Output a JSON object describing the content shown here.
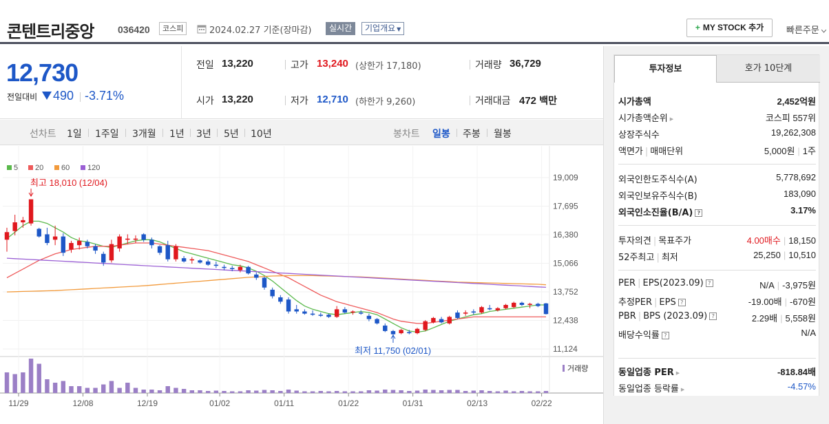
{
  "header": {
    "company_name": "콘텐트리중앙",
    "stock_code": "036420",
    "market": "코스피",
    "date": "2024.02.27 기준(장마감)",
    "realtime_label": "실시간",
    "overview_label": "기업개요",
    "mystock_label": "MY STOCK 추가",
    "quick_order_label": "빠른주문"
  },
  "price": {
    "current": "12,730",
    "change_label": "전일대비",
    "change_amount": "490",
    "change_rate": "-3.71%",
    "direction": "down"
  },
  "stats": {
    "prev_close_label": "전일",
    "prev_close": "13,220",
    "open_label": "시가",
    "open": "13,220",
    "high_label": "고가",
    "high": "13,240",
    "upper_limit": "(상한가 17,180)",
    "low_label": "저가",
    "low": "12,710",
    "lower_limit": "(하한가 9,260)",
    "volume_label": "거래량",
    "volume": "36,729",
    "amount_label": "거래대금",
    "amount": "472",
    "amount_unit": "백만"
  },
  "chart_tabs": {
    "line_label": "선차트",
    "line_periods": [
      "1일",
      "1주일",
      "3개월",
      "1년",
      "3년",
      "5년",
      "10년"
    ],
    "candle_label": "봉차트",
    "candle_periods": [
      "일봉",
      "주봉",
      "월봉"
    ],
    "active_candle": "일봉"
  },
  "chart_data": {
    "type": "candlestick",
    "legend": [
      {
        "name": "5",
        "color": "#5ab94b"
      },
      {
        "name": "20",
        "color": "#ee5a5a"
      },
      {
        "name": "60",
        "color": "#f29a3b"
      },
      {
        "name": "120",
        "color": "#9a5fd4"
      }
    ],
    "y_ticks": [
      "19,009",
      "17,695",
      "16,380",
      "15,066",
      "13,752",
      "12,438",
      "11,124"
    ],
    "y_range": [
      11124,
      19009
    ],
    "x_ticks": [
      "11/29",
      "12/08",
      "12/19",
      "01/02",
      "01/11",
      "01/22",
      "01/31",
      "02/13",
      "02/22"
    ],
    "high_annotation": "최고 18,010 (12/04)",
    "low_annotation": "최저 11,750 (02/01)",
    "volume_label": "거래량",
    "candles": [
      {
        "o": 16150,
        "h": 16700,
        "l": 15600,
        "c": 16500
      },
      {
        "o": 16550,
        "h": 17300,
        "l": 16350,
        "c": 16950
      },
      {
        "o": 16950,
        "h": 17200,
        "l": 16700,
        "c": 17050
      },
      {
        "o": 16900,
        "h": 18010,
        "l": 16800,
        "c": 18010
      },
      {
        "o": 16650,
        "h": 16700,
        "l": 16250,
        "c": 16300
      },
      {
        "o": 16400,
        "h": 16700,
        "l": 15900,
        "c": 16000
      },
      {
        "o": 16150,
        "h": 16800,
        "l": 15900,
        "c": 16300
      },
      {
        "o": 16300,
        "h": 16450,
        "l": 15400,
        "c": 15550
      },
      {
        "o": 15700,
        "h": 16100,
        "l": 15550,
        "c": 16000
      },
      {
        "o": 15900,
        "h": 16250,
        "l": 15700,
        "c": 16100
      },
      {
        "o": 16050,
        "h": 16150,
        "l": 15750,
        "c": 15850
      },
      {
        "o": 15850,
        "h": 15950,
        "l": 15500,
        "c": 15650
      },
      {
        "o": 15500,
        "h": 15600,
        "l": 14950,
        "c": 15100
      },
      {
        "o": 15200,
        "h": 16150,
        "l": 15100,
        "c": 15950
      },
      {
        "o": 15750,
        "h": 16400,
        "l": 15600,
        "c": 16300
      },
      {
        "o": 16150,
        "h": 16400,
        "l": 15950,
        "c": 16200
      },
      {
        "o": 16150,
        "h": 16350,
        "l": 16000,
        "c": 16200
      },
      {
        "o": 16400,
        "h": 16450,
        "l": 16050,
        "c": 16150
      },
      {
        "o": 16150,
        "h": 16250,
        "l": 15750,
        "c": 15900
      },
      {
        "o": 15850,
        "h": 15900,
        "l": 15450,
        "c": 15550
      },
      {
        "o": 15900,
        "h": 16100,
        "l": 15150,
        "c": 15250
      },
      {
        "o": 15250,
        "h": 15950,
        "l": 15150,
        "c": 15850
      },
      {
        "o": 15300,
        "h": 15400,
        "l": 15100,
        "c": 15150
      },
      {
        "o": 15200,
        "h": 15350,
        "l": 15050,
        "c": 15250
      },
      {
        "o": 15200,
        "h": 15250,
        "l": 15050,
        "c": 15100
      },
      {
        "o": 15150,
        "h": 15250,
        "l": 14950,
        "c": 15000
      },
      {
        "o": 15000,
        "h": 15150,
        "l": 14850,
        "c": 14950
      },
      {
        "o": 14900,
        "h": 15000,
        "l": 14750,
        "c": 14850
      },
      {
        "o": 14850,
        "h": 14950,
        "l": 14700,
        "c": 14800
      },
      {
        "o": 14750,
        "h": 15000,
        "l": 14650,
        "c": 14900
      },
      {
        "o": 14900,
        "h": 14950,
        "l": 14550,
        "c": 14600
      },
      {
        "o": 14550,
        "h": 14650,
        "l": 14300,
        "c": 14400
      },
      {
        "o": 14400,
        "h": 14450,
        "l": 13850,
        "c": 13950
      },
      {
        "o": 13850,
        "h": 13950,
        "l": 13450,
        "c": 13550
      },
      {
        "o": 13500,
        "h": 13600,
        "l": 13200,
        "c": 13300
      },
      {
        "o": 13400,
        "h": 13500,
        "l": 12750,
        "c": 12850
      },
      {
        "o": 12950,
        "h": 13150,
        "l": 12750,
        "c": 12850
      },
      {
        "o": 12850,
        "h": 12950,
        "l": 12700,
        "c": 12750
      },
      {
        "o": 12750,
        "h": 12900,
        "l": 12650,
        "c": 12700
      },
      {
        "o": 12700,
        "h": 12800,
        "l": 12600,
        "c": 12650
      },
      {
        "o": 12700,
        "h": 12750,
        "l": 12550,
        "c": 12600
      },
      {
        "o": 12600,
        "h": 13100,
        "l": 12550,
        "c": 12950
      },
      {
        "o": 12950,
        "h": 13050,
        "l": 12750,
        "c": 12800
      },
      {
        "o": 12800,
        "h": 12900,
        "l": 12700,
        "c": 12850
      },
      {
        "o": 12800,
        "h": 12900,
        "l": 12700,
        "c": 12750
      },
      {
        "o": 12650,
        "h": 12750,
        "l": 12400,
        "c": 12500
      },
      {
        "o": 12500,
        "h": 12550,
        "l": 12250,
        "c": 12300
      },
      {
        "o": 12200,
        "h": 12300,
        "l": 11900,
        "c": 11950
      },
      {
        "o": 11950,
        "h": 12000,
        "l": 11750,
        "c": 11800
      },
      {
        "o": 11850,
        "h": 12050,
        "l": 11800,
        "c": 12000
      },
      {
        "o": 11900,
        "h": 12000,
        "l": 11800,
        "c": 11850
      },
      {
        "o": 11850,
        "h": 12100,
        "l": 11800,
        "c": 12050
      },
      {
        "o": 12000,
        "h": 12450,
        "l": 11950,
        "c": 12400
      },
      {
        "o": 12350,
        "h": 12600,
        "l": 12300,
        "c": 12550
      },
      {
        "o": 12500,
        "h": 12600,
        "l": 12300,
        "c": 12350
      },
      {
        "o": 12300,
        "h": 12650,
        "l": 12250,
        "c": 12600
      },
      {
        "o": 12800,
        "h": 12900,
        "l": 12500,
        "c": 12550
      },
      {
        "o": 12750,
        "h": 12900,
        "l": 12650,
        "c": 12800
      },
      {
        "o": 12850,
        "h": 12950,
        "l": 12700,
        "c": 12800
      },
      {
        "o": 12800,
        "h": 13100,
        "l": 12750,
        "c": 13050
      },
      {
        "o": 13000,
        "h": 13150,
        "l": 12900,
        "c": 12950
      },
      {
        "o": 12900,
        "h": 13050,
        "l": 12850,
        "c": 13000
      },
      {
        "o": 13000,
        "h": 13200,
        "l": 12950,
        "c": 13150
      },
      {
        "o": 13050,
        "h": 13300,
        "l": 13000,
        "c": 13250
      },
      {
        "o": 13250,
        "h": 13300,
        "l": 13100,
        "c": 13150
      },
      {
        "o": 13150,
        "h": 13250,
        "l": 13000,
        "c": 13200
      },
      {
        "o": 13200,
        "h": 13250,
        "l": 13050,
        "c": 13100
      },
      {
        "o": 13220,
        "h": 13240,
        "l": 12710,
        "c": 12730
      }
    ],
    "ma": {
      "5": [
        16200,
        16500,
        16800,
        17000,
        17000,
        16900,
        16700,
        16500,
        16250,
        16100,
        16050,
        15950,
        15850,
        15800,
        15900,
        16000,
        16100,
        16150,
        16150,
        16050,
        15900,
        15750,
        15600,
        15500,
        15400,
        15300,
        15200,
        15100,
        15000,
        14950,
        14850,
        14700,
        14500,
        14250,
        13950,
        13650,
        13350,
        13100,
        12950,
        12850,
        12750,
        12700,
        12750,
        12800,
        12850,
        12800,
        12700,
        12500,
        12300,
        12100,
        11950,
        11900,
        11950,
        12100,
        12250,
        12400,
        12500,
        12600,
        12700,
        12750,
        12850,
        12900,
        12950,
        13000,
        13050,
        13100,
        13150,
        13150
      ],
      "20": [
        14400,
        14600,
        14800,
        15000,
        15200,
        15350,
        15500,
        15600,
        15700,
        15750,
        15800,
        15850,
        15850,
        15850,
        15900,
        15950,
        16000,
        16000,
        16000,
        15950,
        15900,
        15850,
        15800,
        15750,
        15700,
        15650,
        15550,
        15450,
        15350,
        15250,
        15150,
        15000,
        14850,
        14700,
        14550,
        14400,
        14200,
        14000,
        13800,
        13600,
        13450,
        13300,
        13200,
        13100,
        13000,
        12900,
        12800,
        12650,
        12500,
        12400,
        12350,
        12300,
        12300,
        12350,
        12400,
        12450,
        12500,
        12550,
        12600,
        12600,
        12600,
        12600,
        12600,
        12600,
        12600,
        12600,
        12600,
        12600
      ],
      "60": [
        13750,
        13760,
        13770,
        13780,
        13790,
        13800,
        13810,
        13830,
        13850,
        13870,
        13890,
        13910,
        13930,
        13950,
        13970,
        13990,
        14010,
        14030,
        14060,
        14090,
        14120,
        14150,
        14180,
        14210,
        14240,
        14270,
        14300,
        14330,
        14360,
        14390,
        14420,
        14440,
        14460,
        14480,
        14490,
        14500,
        14500,
        14500,
        14500,
        14490,
        14480,
        14470,
        14460,
        14450,
        14440,
        14420,
        14400,
        14380,
        14360,
        14340,
        14320,
        14300,
        14280,
        14260,
        14240,
        14220,
        14200,
        14190,
        14180,
        14170,
        14160,
        14150,
        14140,
        14130,
        14120,
        14110,
        14100,
        14080
      ],
      "120": [
        15300,
        15280,
        15260,
        15240,
        15220,
        15200,
        15180,
        15160,
        15140,
        15120,
        15100,
        15080,
        15060,
        15040,
        15020,
        15000,
        14980,
        14960,
        14940,
        14920,
        14900,
        14880,
        14860,
        14840,
        14820,
        14800,
        14780,
        14760,
        14740,
        14720,
        14700,
        14680,
        14660,
        14640,
        14620,
        14600,
        14580,
        14560,
        14540,
        14520,
        14500,
        14480,
        14460,
        14440,
        14420,
        14400,
        14380,
        14360,
        14340,
        14320,
        14300,
        14280,
        14260,
        14240,
        14220,
        14200,
        14180,
        14160,
        14140,
        14120,
        14100,
        14080,
        14060,
        14040,
        14020,
        14000,
        13980,
        13960
      ]
    },
    "volumes": [
      60,
      55,
      60,
      100,
      85,
      40,
      30,
      35,
      20,
      20,
      15,
      15,
      25,
      35,
      15,
      30,
      15,
      10,
      10,
      8,
      20,
      15,
      12,
      8,
      8,
      6,
      7,
      6,
      5,
      5,
      8,
      7,
      9,
      8,
      6,
      10,
      7,
      5,
      5,
      6,
      5,
      6,
      5,
      5,
      5,
      8,
      7,
      10,
      9,
      8,
      6,
      7,
      10,
      9,
      8,
      9,
      9,
      6,
      7,
      8,
      6,
      5,
      7,
      5,
      6,
      5,
      5,
      6
    ]
  },
  "invest_panel": {
    "tab_active": "투자정보",
    "tab_other": "호가 10단계",
    "rows": [
      {
        "label": "시가총액",
        "value": "2,452억원"
      },
      {
        "label": "시가총액순위",
        "value": "코스피 557위"
      },
      {
        "label": "상장주식수",
        "value": "19,262,308"
      },
      {
        "label": "액면가",
        "label2": "매매단위",
        "value": "5,000원",
        "value2": "1주"
      },
      {
        "label": "외국인한도주식수(A)",
        "value": "5,778,692"
      },
      {
        "label": "외국인보유주식수(B)",
        "value": "183,090"
      },
      {
        "label": "외국인소진율(B/A)",
        "value": "3.17%"
      },
      {
        "label": "투자의견",
        "label2": "목표주가",
        "value": "4.00매수",
        "value2": "18,150"
      },
      {
        "label": "52주최고",
        "label2": "최저",
        "value": "25,250",
        "value2": "10,510"
      },
      {
        "label": "PER",
        "label2": "EPS(2023.09)",
        "value": "N/A",
        "value2": "-3,975원"
      },
      {
        "label": "추정PER",
        "label2": "EPS",
        "value": "-19.00배",
        "value2": "-670원"
      },
      {
        "label": "PBR",
        "label2": "BPS (2023.09)",
        "value": "2.29배",
        "value2": "5,558원"
      },
      {
        "label": "배당수익률",
        "value": "N/A"
      },
      {
        "label": "동일업종 PER",
        "value": "-818.84배"
      },
      {
        "label": "동일업종 등락률",
        "value": "-4.57%"
      }
    ]
  }
}
